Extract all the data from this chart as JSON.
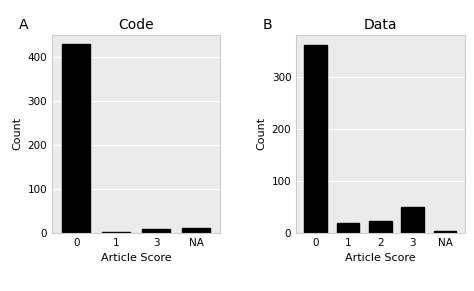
{
  "panel_A": {
    "title": "Code",
    "categories": [
      "0",
      "1",
      "3",
      "NA"
    ],
    "values": [
      430,
      2,
      8,
      12
    ],
    "xlabel": "Article Score",
    "ylabel": "Count",
    "yticks": [
      0,
      100,
      200,
      300,
      400
    ],
    "ylim": [
      0,
      450
    ]
  },
  "panel_B": {
    "title": "Data",
    "categories": [
      "0",
      "1",
      "2",
      "3",
      "NA"
    ],
    "values": [
      360,
      18,
      22,
      50,
      4
    ],
    "xlabel": "Article Score",
    "ylabel": "Count",
    "yticks": [
      0,
      100,
      200,
      300
    ],
    "ylim": [
      0,
      380
    ]
  },
  "bar_color": "#000000",
  "background_color": "#ebebeb",
  "panel_labels": [
    "A",
    "B"
  ],
  "label_fontsize": 10,
  "title_fontsize": 10,
  "axis_fontsize": 8,
  "tick_fontsize": 7.5
}
